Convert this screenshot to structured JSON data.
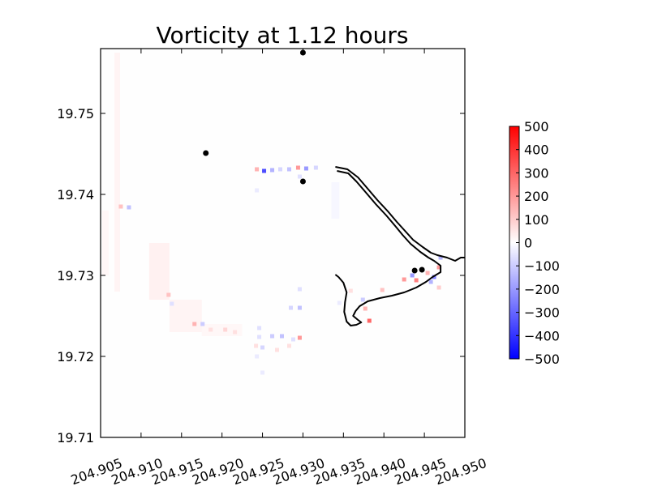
{
  "chart_data": {
    "type": "heatmap",
    "title": "Vorticity at 1.12 hours",
    "xlabel": "",
    "ylabel": "",
    "xlim": [
      204.905,
      204.95
    ],
    "ylim": [
      19.71,
      19.758
    ],
    "x_ticks": [
      204.905,
      204.91,
      204.915,
      204.92,
      204.925,
      204.93,
      204.935,
      204.94,
      204.945,
      204.95
    ],
    "x_tick_labels": [
      "204.905",
      "204.910",
      "204.915",
      "204.920",
      "204.925",
      "204.930",
      "204.935",
      "204.940",
      "204.945",
      "204.950"
    ],
    "y_ticks": [
      19.71,
      19.72,
      19.73,
      19.74,
      19.75
    ],
    "y_tick_labels": [
      "19.71",
      "19.72",
      "19.73",
      "19.74",
      "19.75"
    ],
    "colorbar": {
      "colormap": "bwr",
      "min": -500,
      "max": 500,
      "ticks": [
        500,
        400,
        300,
        200,
        100,
        0,
        -100,
        -200,
        -300,
        -400,
        -500
      ],
      "tick_labels": [
        "500",
        "400",
        "300",
        "200",
        "100",
        "0",
        "−100",
        "−200",
        "−300",
        "−400",
        "−500"
      ]
    },
    "gauge_points": [
      {
        "x": 204.93,
        "y": 19.7575
      },
      {
        "x": 204.918,
        "y": 19.7451
      },
      {
        "x": 204.93,
        "y": 19.7416
      },
      {
        "x": 204.9438,
        "y": 19.7306
      },
      {
        "x": 204.9447,
        "y": 19.7307
      }
    ],
    "coastline_outer": [
      [
        204.934,
        19.7434
      ],
      [
        204.9355,
        19.7431
      ],
      [
        204.9368,
        19.7421
      ],
      [
        204.938,
        19.7407
      ],
      [
        204.9392,
        19.7393
      ],
      [
        204.9405,
        19.7379
      ],
      [
        204.9416,
        19.7366
      ],
      [
        204.9426,
        19.7355
      ],
      [
        204.9436,
        19.7344
      ],
      [
        204.9448,
        19.7335
      ],
      [
        204.9458,
        19.7328
      ],
      [
        204.9466,
        19.7325
      ],
      [
        204.9478,
        19.7322
      ],
      [
        204.9488,
        19.7318
      ],
      [
        204.9495,
        19.7322
      ],
      [
        204.95,
        19.7322
      ]
    ],
    "coastline_inner": [
      [
        204.9342,
        19.7429
      ],
      [
        204.9356,
        19.7426
      ],
      [
        204.9366,
        19.7416
      ],
      [
        204.9378,
        19.7402
      ],
      [
        204.939,
        19.7388
      ],
      [
        204.9403,
        19.7374
      ],
      [
        204.9414,
        19.7361
      ],
      [
        204.9423,
        19.735
      ],
      [
        204.9433,
        19.7339
      ],
      [
        204.9445,
        19.7329
      ],
      [
        204.9455,
        19.7322
      ],
      [
        204.9462,
        19.7318
      ],
      [
        204.947,
        19.7312
      ],
      [
        204.947,
        19.7304
      ],
      [
        204.946,
        19.7298
      ],
      [
        204.9452,
        19.7292
      ],
      [
        204.944,
        19.7285
      ],
      [
        204.9425,
        19.7279
      ],
      [
        204.941,
        19.7275
      ],
      [
        204.9395,
        19.7272
      ],
      [
        204.938,
        19.7268
      ],
      [
        204.937,
        19.7262
      ],
      [
        204.9365,
        19.7256
      ],
      [
        204.9362,
        19.725
      ],
      [
        204.9368,
        19.7245
      ],
      [
        204.9372,
        19.7242
      ],
      [
        204.9366,
        19.7239
      ],
      [
        204.9359,
        19.7238
      ],
      [
        204.9354,
        19.7243
      ],
      [
        204.9351,
        19.7255
      ],
      [
        204.9352,
        19.7267
      ],
      [
        204.9354,
        19.7279
      ],
      [
        204.935,
        19.7291
      ],
      [
        204.9344,
        19.7298
      ],
      [
        204.934,
        19.7301
      ]
    ],
    "vorticity_patches": [
      {
        "x": 204.9243,
        "y": 19.7431,
        "value": 150
      },
      {
        "x": 204.9252,
        "y": 19.7429,
        "value": -350
      },
      {
        "x": 204.9262,
        "y": 19.743,
        "value": -150
      },
      {
        "x": 204.9272,
        "y": 19.7431,
        "value": -80
      },
      {
        "x": 204.9283,
        "y": 19.7431,
        "value": -120
      },
      {
        "x": 204.9294,
        "y": 19.7433,
        "value": 200
      },
      {
        "x": 204.9304,
        "y": 19.7432,
        "value": -200
      },
      {
        "x": 204.9316,
        "y": 19.7433,
        "value": -80
      },
      {
        "x": 204.9296,
        "y": 19.7422,
        "value": -60
      },
      {
        "x": 204.9075,
        "y": 19.7385,
        "value": 120
      },
      {
        "x": 204.9085,
        "y": 19.7384,
        "value": -120
      },
      {
        "x": 204.9134,
        "y": 19.7276,
        "value": 120
      },
      {
        "x": 204.9138,
        "y": 19.7265,
        "value": -60
      },
      {
        "x": 204.9166,
        "y": 19.724,
        "value": 150
      },
      {
        "x": 204.9176,
        "y": 19.724,
        "value": -100
      },
      {
        "x": 204.9186,
        "y": 19.7233,
        "value": 60
      },
      {
        "x": 204.9204,
        "y": 19.7233,
        "value": 80
      },
      {
        "x": 204.9216,
        "y": 19.723,
        "value": 60
      },
      {
        "x": 204.9246,
        "y": 19.7224,
        "value": -60
      },
      {
        "x": 204.9262,
        "y": 19.7225,
        "value": -100
      },
      {
        "x": 204.9274,
        "y": 19.7225,
        "value": -120
      },
      {
        "x": 204.9288,
        "y": 19.7221,
        "value": -60
      },
      {
        "x": 204.9296,
        "y": 19.7223,
        "value": 200
      },
      {
        "x": 204.925,
        "y": 19.7211,
        "value": -80
      },
      {
        "x": 204.9268,
        "y": 19.7208,
        "value": 60
      },
      {
        "x": 204.9283,
        "y": 19.7213,
        "value": 60
      },
      {
        "x": 204.925,
        "y": 19.718,
        "value": -40
      },
      {
        "x": 204.9243,
        "y": 19.72,
        "value": -40
      },
      {
        "x": 204.9242,
        "y": 19.7213,
        "value": 60
      },
      {
        "x": 204.9246,
        "y": 19.7235,
        "value": -60
      },
      {
        "x": 204.9243,
        "y": 19.7405,
        "value": -40
      },
      {
        "x": 204.9296,
        "y": 19.726,
        "value": -120
      },
      {
        "x": 204.9285,
        "y": 19.726,
        "value": -80
      },
      {
        "x": 204.9296,
        "y": 19.7283,
        "value": -60
      },
      {
        "x": 204.9377,
        "y": 19.7259,
        "value": 150
      },
      {
        "x": 204.9382,
        "y": 19.7244,
        "value": 300
      },
      {
        "x": 204.9398,
        "y": 19.7282,
        "value": 120
      },
      {
        "x": 204.9425,
        "y": 19.7295,
        "value": 200
      },
      {
        "x": 204.9435,
        "y": 19.73,
        "value": -200
      },
      {
        "x": 204.944,
        "y": 19.7294,
        "value": 250
      },
      {
        "x": 204.9454,
        "y": 19.7303,
        "value": 150
      },
      {
        "x": 204.9462,
        "y": 19.7298,
        "value": -250
      },
      {
        "x": 204.9468,
        "y": 19.731,
        "value": 200
      },
      {
        "x": 204.947,
        "y": 19.7322,
        "value": -150
      },
      {
        "x": 204.9458,
        "y": 19.7292,
        "value": -150
      },
      {
        "x": 204.9468,
        "y": 19.7285,
        "value": 100
      },
      {
        "x": 204.9374,
        "y": 19.727,
        "value": -100
      },
      {
        "x": 204.9345,
        "y": 19.7266,
        "value": -40
      },
      {
        "x": 204.9359,
        "y": 19.7281,
        "value": 60
      }
    ],
    "faint_trails": [
      {
        "x0": 204.9067,
        "x1": 204.9074,
        "y0": 19.728,
        "y1": 19.7575,
        "value": 40
      },
      {
        "x0": 204.9052,
        "x1": 204.906,
        "y0": 19.73,
        "y1": 19.738,
        "value": 30
      },
      {
        "x0": 204.911,
        "x1": 204.9135,
        "y0": 19.727,
        "y1": 19.734,
        "value": 50
      },
      {
        "x0": 204.9135,
        "x1": 204.9175,
        "y0": 19.723,
        "y1": 19.727,
        "value": 40
      },
      {
        "x0": 204.9175,
        "x1": 204.9225,
        "y0": 19.7225,
        "y1": 19.724,
        "value": 30
      },
      {
        "x0": 204.9335,
        "x1": 204.9345,
        "y0": 19.737,
        "y1": 19.7415,
        "value": -30
      }
    ]
  }
}
